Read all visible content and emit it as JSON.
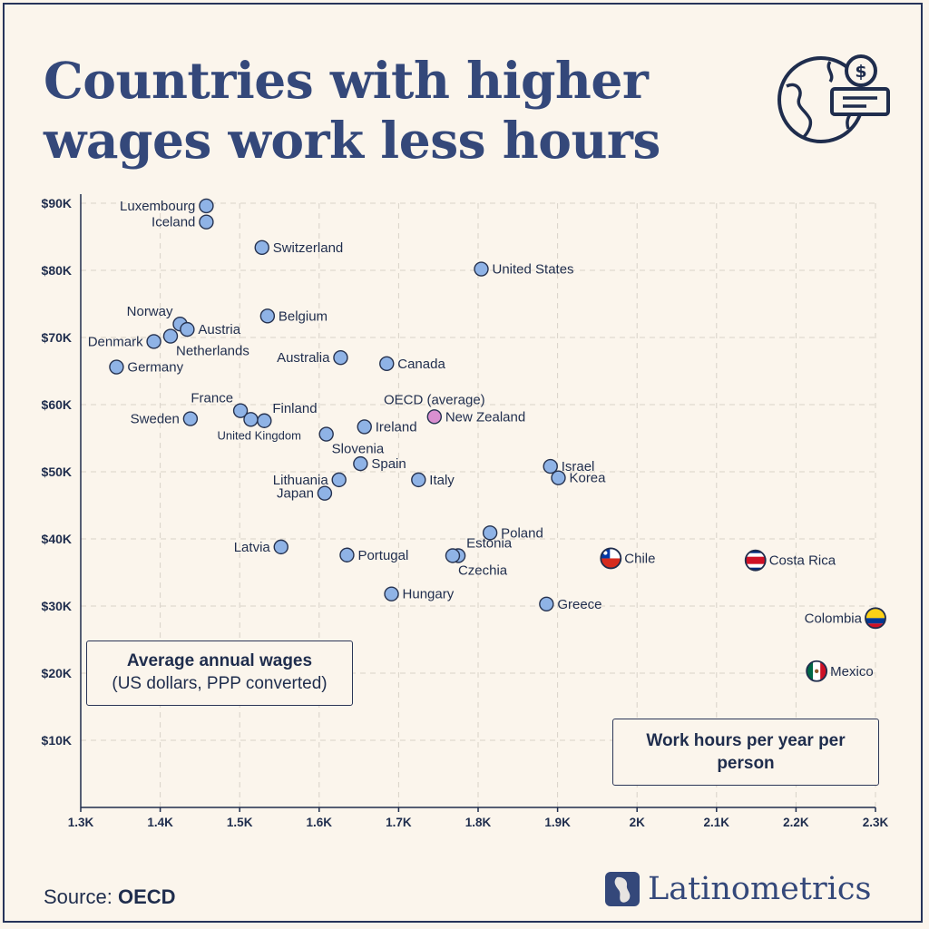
{
  "title": "Countries with higher wages work less hours",
  "y_axis_box": {
    "line1": "Average annual wages",
    "line2": "(US dollars, PPP converted)"
  },
  "x_axis_box": {
    "text": "Work hours per year per person"
  },
  "source": {
    "label": "Source:",
    "name": "OECD"
  },
  "brand": "Latinometrics",
  "colors": {
    "background": "#fbf5ec",
    "point": "#8fb3e6",
    "point_stroke": "#26324f",
    "oecd_point": "#d98fd0",
    "title": "#34487a",
    "grid": "#d8d2c8"
  },
  "chart_data": {
    "type": "scatter",
    "title": "Countries with higher wages work less hours",
    "xlabel": "Work hours per year per person",
    "ylabel": "Average annual wages (US dollars, PPP converted)",
    "xlim": [
      1300,
      2300
    ],
    "ylim": [
      0,
      90000
    ],
    "x_ticks": [
      1300,
      1400,
      1500,
      1600,
      1700,
      1800,
      1900,
      2000,
      2100,
      2200,
      2300
    ],
    "x_tick_labels": [
      "1.3K",
      "1.4K",
      "1.5K",
      "1.6K",
      "1.7K",
      "1.8K",
      "1.9K",
      "2K",
      "2.1K",
      "2.2K",
      "2.3K"
    ],
    "y_ticks": [
      10000,
      20000,
      30000,
      40000,
      50000,
      60000,
      70000,
      80000,
      90000
    ],
    "y_tick_labels": [
      "$10K",
      "$20K",
      "$30K",
      "$40K",
      "$50K",
      "$60K",
      "$70K",
      "$80K",
      "$90K"
    ],
    "grid": true,
    "points": [
      {
        "label": "Luxembourg",
        "x": 1458,
        "y": 89600,
        "anchor": "left"
      },
      {
        "label": "Iceland",
        "x": 1458,
        "y": 87200,
        "anchor": "left"
      },
      {
        "label": "Switzerland",
        "x": 1528,
        "y": 83400,
        "anchor": "right"
      },
      {
        "label": "United States",
        "x": 1804,
        "y": 80200,
        "anchor": "right"
      },
      {
        "label": "Belgium",
        "x": 1535,
        "y": 73200,
        "anchor": "right"
      },
      {
        "label": "Norway",
        "x": 1425,
        "y": 72000,
        "anchor": "upleft"
      },
      {
        "label": "Austria",
        "x": 1434,
        "y": 71200,
        "anchor": "right"
      },
      {
        "label": "Netherlands",
        "x": 1413,
        "y": 70200,
        "anchor": "belowright"
      },
      {
        "label": "Denmark",
        "x": 1392,
        "y": 69400,
        "anchor": "left"
      },
      {
        "label": "Australia",
        "x": 1627,
        "y": 67000,
        "anchor": "left"
      },
      {
        "label": "Canada",
        "x": 1685,
        "y": 66100,
        "anchor": "right"
      },
      {
        "label": "Germany",
        "x": 1345,
        "y": 65600,
        "anchor": "right"
      },
      {
        "label": "France",
        "x": 1501,
        "y": 59100,
        "anchor": "upleft"
      },
      {
        "label": "Finland",
        "x": 1531,
        "y": 57600,
        "anchor": "upright"
      },
      {
        "label": "Sweden",
        "x": 1438,
        "y": 57900,
        "anchor": "left"
      },
      {
        "label": "United Kingdom",
        "x": 1514,
        "y": 57800,
        "anchor": "belowsmall"
      },
      {
        "label": "OECD (average)",
        "x": 1745,
        "y": 58200,
        "anchor": "above",
        "highlight": true
      },
      {
        "label": "New Zealand",
        "x": 1745,
        "y": 58200,
        "anchor": "right",
        "highlight": true
      },
      {
        "label": "Ireland",
        "x": 1657,
        "y": 56700,
        "anchor": "right"
      },
      {
        "label": "Slovenia",
        "x": 1609,
        "y": 55600,
        "anchor": "belowright"
      },
      {
        "label": "Spain",
        "x": 1652,
        "y": 51200,
        "anchor": "right"
      },
      {
        "label": "Israel",
        "x": 1891,
        "y": 50800,
        "anchor": "right"
      },
      {
        "label": "Korea",
        "x": 1901,
        "y": 49100,
        "anchor": "right"
      },
      {
        "label": "Lithuania",
        "x": 1625,
        "y": 48800,
        "anchor": "left"
      },
      {
        "label": "Italy",
        "x": 1725,
        "y": 48800,
        "anchor": "right"
      },
      {
        "label": "Japan",
        "x": 1607,
        "y": 46800,
        "anchor": "left"
      },
      {
        "label": "Poland",
        "x": 1815,
        "y": 40900,
        "anchor": "right"
      },
      {
        "label": "Latvia",
        "x": 1552,
        "y": 38800,
        "anchor": "left"
      },
      {
        "label": "Portugal",
        "x": 1635,
        "y": 37600,
        "anchor": "right"
      },
      {
        "label": "Estonia",
        "x": 1775,
        "y": 37500,
        "anchor": "upright"
      },
      {
        "label": "Czechia",
        "x": 1768,
        "y": 37500,
        "anchor": "belowright"
      },
      {
        "label": "Chile",
        "x": 1967,
        "y": 37100,
        "anchor": "right",
        "flag": "chile"
      },
      {
        "label": "Costa Rica",
        "x": 2149,
        "y": 36800,
        "anchor": "right",
        "flag": "costa-rica"
      },
      {
        "label": "Hungary",
        "x": 1691,
        "y": 31800,
        "anchor": "right"
      },
      {
        "label": "Greece",
        "x": 1886,
        "y": 30300,
        "anchor": "right"
      },
      {
        "label": "Colombia",
        "x": 2300,
        "y": 28200,
        "anchor": "left",
        "flag": "colombia"
      },
      {
        "label": "Mexico",
        "x": 2226,
        "y": 20300,
        "anchor": "right",
        "flag": "mexico"
      }
    ]
  }
}
